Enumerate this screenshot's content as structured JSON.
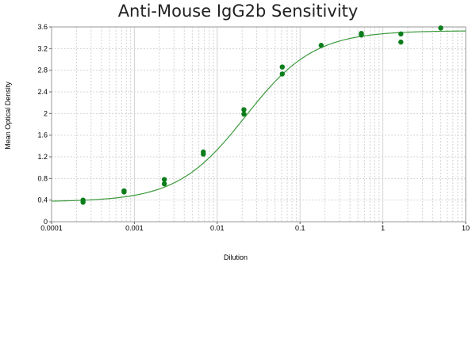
{
  "chart_data": {
    "type": "scatter",
    "title": "Anti-Mouse IgG2b Sensitivity",
    "xlabel": "Dilution",
    "ylabel": "Mean Optical Density",
    "xscale": "log",
    "xlim": [
      0.0001,
      10
    ],
    "ylim": [
      0,
      3.6
    ],
    "grid": true,
    "x_tick_labels": [
      "0.0001",
      "0.001",
      "0.01",
      "0.1",
      "1",
      "10"
    ],
    "x_tick_values": [
      0.0001,
      0.001,
      0.01,
      0.1,
      1,
      10
    ],
    "y_tick_labels": [
      "0",
      "0.4",
      "0.8",
      "1.2",
      "1.6",
      "2",
      "2.4",
      "2.8",
      "3.2",
      "3.6"
    ],
    "y_tick_values": [
      0,
      0.4,
      0.8,
      1.2,
      1.6,
      2,
      2.4,
      2.8,
      3.2,
      3.6
    ],
    "colors": {
      "points": "#0b7d1a",
      "curve": "#3c9a3c",
      "grid": "#d4d4d4",
      "frame": "#9a9a9a"
    },
    "series": [
      {
        "type": "scatter",
        "x": [
          0.00024,
          0.00024,
          0.00075,
          0.00075,
          0.0023,
          0.0023,
          0.0068,
          0.0068,
          0.021,
          0.021,
          0.061,
          0.061,
          0.18,
          0.55,
          0.55,
          1.65,
          1.65,
          5.0
        ],
        "y": [
          0.4,
          0.36,
          0.57,
          0.55,
          0.78,
          0.7,
          1.29,
          1.25,
          2.07,
          1.99,
          2.86,
          2.73,
          3.26,
          3.48,
          3.45,
          3.47,
          3.32,
          3.58
        ]
      },
      {
        "type": "line",
        "fit": "4PL",
        "bottom": 0.37,
        "top": 3.53,
        "ec50": 0.022,
        "hill": 1.05
      }
    ]
  }
}
